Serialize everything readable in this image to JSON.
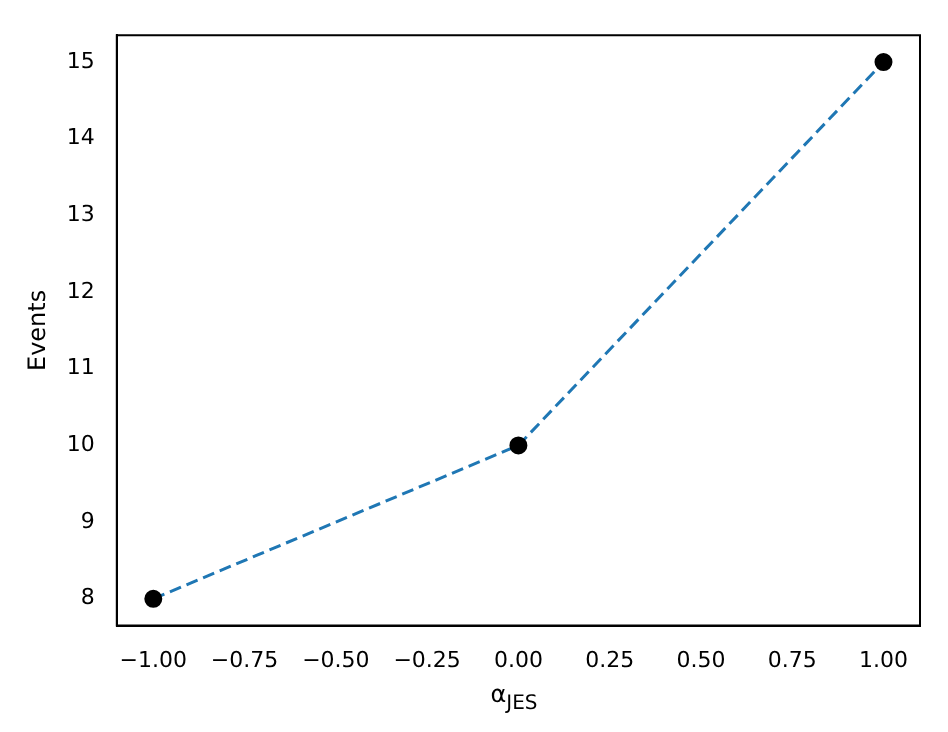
{
  "chart_data": {
    "type": "line",
    "xlabel": "α$_{JES}$",
    "ylabel": "Events",
    "x": [
      -1,
      0,
      1
    ],
    "series": [
      {
        "type": "line",
        "color": "#1f77b4",
        "line_style": "dashed",
        "marker": "none",
        "values": [
          8,
          10,
          15
        ]
      },
      {
        "type": "scatter",
        "color": "#000000",
        "marker": "circle",
        "values": [
          8,
          10,
          15
        ]
      }
    ],
    "xlim": [
      -1.1,
      1.1
    ],
    "xticks": [
      {
        "value": -1,
        "label": "−1.00"
      },
      {
        "value": -0.75,
        "label": "−0.75"
      },
      {
        "value": -0.5,
        "label": "−0.50"
      },
      {
        "value": -0.25,
        "label": "−0.25"
      },
      {
        "value": 0,
        "label": "0.00"
      },
      {
        "value": 0.25,
        "label": "0.25"
      },
      {
        "value": 0.5,
        "label": "0.50"
      },
      {
        "value": 0.75,
        "label": "0.75"
      },
      {
        "value": 1,
        "label": "1.00"
      }
    ],
    "ylim": [
      7.65,
      15.35
    ],
    "yticks": [
      8,
      9,
      10,
      11,
      12,
      13,
      14,
      15
    ],
    "grid": false,
    "legend": false
  }
}
